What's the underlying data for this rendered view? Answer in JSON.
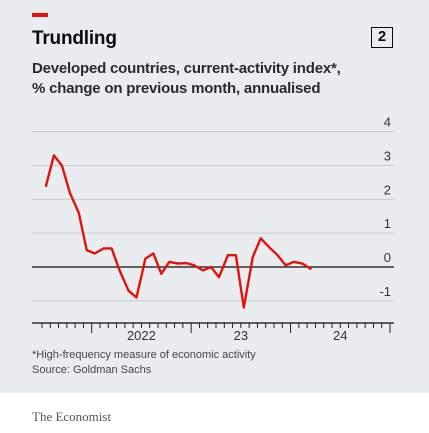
{
  "header": {
    "title": "Trundling",
    "chart_number": "2",
    "subtitle_line1": "Developed countries, current-activity index*,",
    "subtitle_line2": "% change on previous month, annualised"
  },
  "footer": {
    "note": "*High-frequency measure of economic activity",
    "source": "Source: Goldman Sachs",
    "brand": "The Economist"
  },
  "colors": {
    "line": "#e3120b",
    "background": "#e9edf0",
    "grid": "#c4cdd3",
    "zero_line": "#0c0c0c",
    "brand_tag": "#e3120b"
  },
  "chart_data": {
    "type": "line",
    "title": "Trundling",
    "subtitle": "Developed countries, current-activity index*, % change on previous month, annualised",
    "x_tick_labels": [
      {
        "label": "2022",
        "x": 2022.5
      },
      {
        "label": "23",
        "x": 2023.5
      },
      {
        "label": "24",
        "x": 2024.5
      }
    ],
    "y_ticks": [
      4,
      3,
      2,
      1,
      0,
      -1
    ],
    "ylim": [
      -1.3,
      4.7
    ],
    "xlim": [
      2021.5,
      2025.0
    ],
    "grid": true,
    "series": [
      {
        "values": [
          [
            2021.54,
            2.4
          ],
          [
            2021.62,
            3.3
          ],
          [
            2021.7,
            3.0
          ],
          [
            2021.78,
            2.2
          ],
          [
            2021.87,
            1.6
          ],
          [
            2021.95,
            0.5
          ],
          [
            2022.03,
            0.4
          ],
          [
            2022.12,
            0.55
          ],
          [
            2022.2,
            0.55
          ],
          [
            2022.28,
            -0.1
          ],
          [
            2022.37,
            -0.7
          ],
          [
            2022.45,
            -0.9
          ],
          [
            2022.54,
            0.25
          ],
          [
            2022.62,
            0.4
          ],
          [
            2022.7,
            -0.2
          ],
          [
            2022.78,
            0.15
          ],
          [
            2022.87,
            0.1
          ],
          [
            2022.95,
            0.12
          ],
          [
            2023.03,
            0.05
          ],
          [
            2023.12,
            -0.1
          ],
          [
            2023.2,
            0.0
          ],
          [
            2023.28,
            -0.3
          ],
          [
            2023.37,
            0.35
          ],
          [
            2023.45,
            0.35
          ],
          [
            2023.53,
            -1.2
          ],
          [
            2023.62,
            0.3
          ],
          [
            2023.7,
            0.85
          ],
          [
            2023.78,
            0.6
          ],
          [
            2023.87,
            0.35
          ],
          [
            2023.95,
            0.05
          ],
          [
            2024.03,
            0.15
          ],
          [
            2024.12,
            0.1
          ],
          [
            2024.2,
            -0.05
          ]
        ]
      }
    ]
  }
}
